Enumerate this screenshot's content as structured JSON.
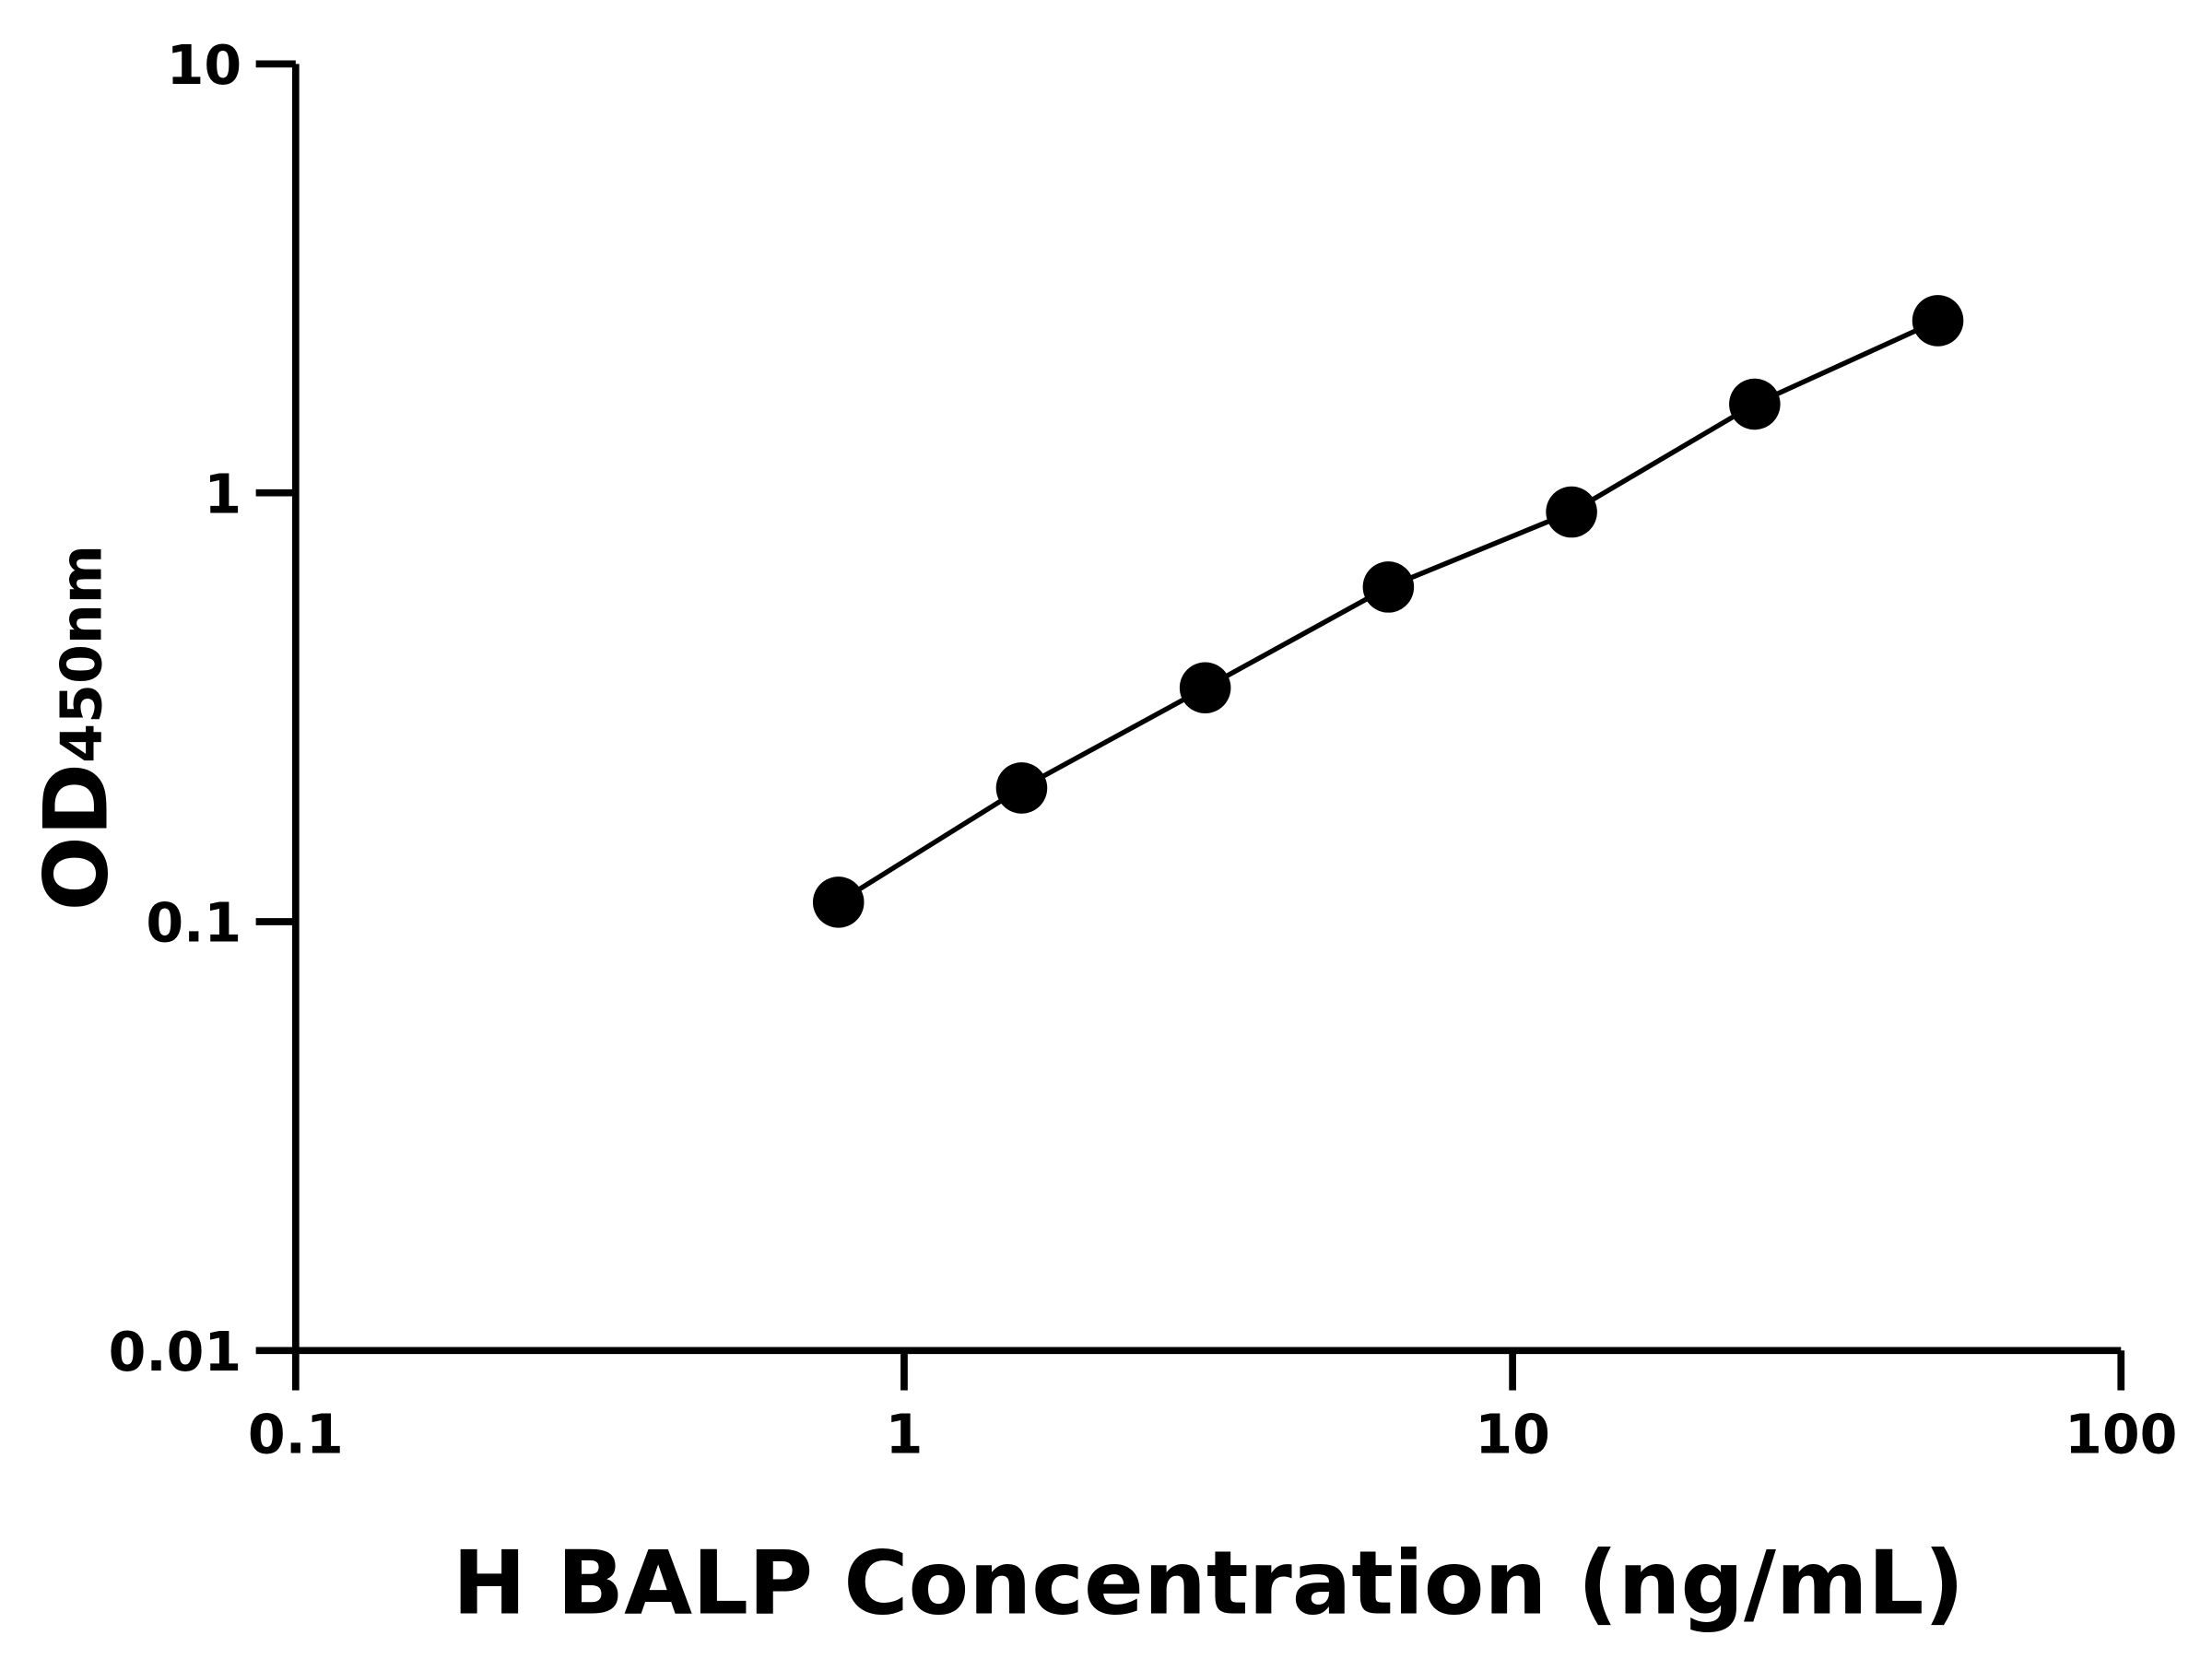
{
  "chart_data": {
    "type": "line",
    "title": "",
    "xlabel": "H BALP Concentration (ng/mL)",
    "ylabel": {
      "main": "OD",
      "subscript": "450nm"
    },
    "x_scale": "log",
    "y_scale": "log",
    "xlim": [
      0.1,
      100
    ],
    "ylim": [
      0.01,
      10
    ],
    "x_ticks": [
      "0.1",
      "1",
      "10",
      "100"
    ],
    "y_ticks": [
      "0.01",
      "0.1",
      "1",
      "10"
    ],
    "grid": false,
    "legend": "none",
    "colors": {
      "line": "#000000",
      "marker": "#000000"
    },
    "series": [
      {
        "x": [
          0.78,
          1.56,
          3.125,
          6.25,
          12.5,
          25,
          50
        ],
        "y": [
          0.111,
          0.205,
          0.351,
          0.603,
          0.902,
          1.61,
          2.52
        ]
      }
    ]
  }
}
